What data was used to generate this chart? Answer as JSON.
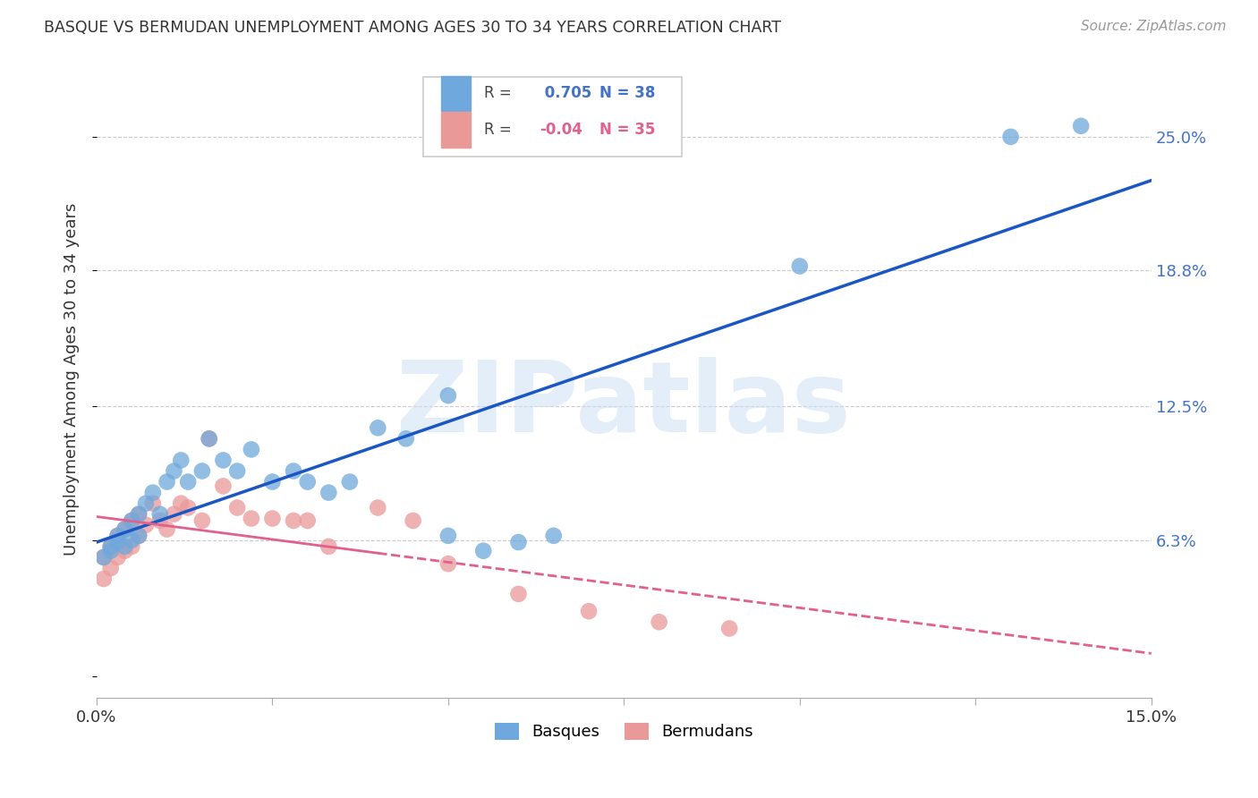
{
  "title": "BASQUE VS BERMUDAN UNEMPLOYMENT AMONG AGES 30 TO 34 YEARS CORRELATION CHART",
  "source": "Source: ZipAtlas.com",
  "ylabel": "Unemployment Among Ages 30 to 34 years",
  "x_min": 0.0,
  "x_max": 0.15,
  "y_min": -0.01,
  "y_max": 0.285,
  "x_ticks": [
    0.0,
    0.025,
    0.05,
    0.075,
    0.1,
    0.125,
    0.15
  ],
  "x_tick_labels": [
    "0.0%",
    "",
    "",
    "",
    "",
    "",
    "15.0%"
  ],
  "y_ticks": [
    0.0,
    0.063,
    0.125,
    0.188,
    0.25
  ],
  "y_tick_labels": [
    "",
    "6.3%",
    "12.5%",
    "18.8%",
    "25.0%"
  ],
  "basque_R": 0.705,
  "basque_N": 38,
  "bermudan_R": -0.04,
  "bermudan_N": 35,
  "basque_color": "#6fa8dc",
  "bermudan_color": "#ea9999",
  "basque_line_color": "#1a56c4",
  "bermudan_line_color": "#e06090",
  "legend_label_basque": "Basques",
  "legend_label_bermudan": "Bermudans",
  "watermark": "ZIPatlas",
  "basque_x": [
    0.001,
    0.002,
    0.002,
    0.003,
    0.003,
    0.004,
    0.004,
    0.005,
    0.005,
    0.006,
    0.006,
    0.007,
    0.008,
    0.009,
    0.01,
    0.011,
    0.012,
    0.013,
    0.015,
    0.016,
    0.018,
    0.02,
    0.022,
    0.025,
    0.028,
    0.03,
    0.033,
    0.036,
    0.04,
    0.044,
    0.05,
    0.055,
    0.06,
    0.065,
    0.05,
    0.1,
    0.13,
    0.14
  ],
  "basque_y": [
    0.055,
    0.06,
    0.058,
    0.062,
    0.065,
    0.06,
    0.068,
    0.063,
    0.072,
    0.065,
    0.075,
    0.08,
    0.085,
    0.075,
    0.09,
    0.095,
    0.1,
    0.09,
    0.095,
    0.11,
    0.1,
    0.095,
    0.105,
    0.09,
    0.095,
    0.09,
    0.085,
    0.09,
    0.115,
    0.11,
    0.065,
    0.058,
    0.062,
    0.065,
    0.13,
    0.19,
    0.25,
    0.255
  ],
  "bermudan_x": [
    0.001,
    0.001,
    0.002,
    0.002,
    0.003,
    0.003,
    0.004,
    0.004,
    0.005,
    0.005,
    0.006,
    0.006,
    0.007,
    0.008,
    0.009,
    0.01,
    0.011,
    0.012,
    0.013,
    0.015,
    0.016,
    0.018,
    0.02,
    0.022,
    0.025,
    0.028,
    0.03,
    0.033,
    0.04,
    0.045,
    0.05,
    0.06,
    0.07,
    0.08,
    0.09
  ],
  "bermudan_y": [
    0.055,
    0.045,
    0.06,
    0.05,
    0.065,
    0.055,
    0.068,
    0.058,
    0.072,
    0.06,
    0.075,
    0.065,
    0.07,
    0.08,
    0.072,
    0.068,
    0.075,
    0.08,
    0.078,
    0.072,
    0.11,
    0.088,
    0.078,
    0.073,
    0.073,
    0.072,
    0.072,
    0.06,
    0.078,
    0.072,
    0.052,
    0.038,
    0.03,
    0.025,
    0.022
  ]
}
